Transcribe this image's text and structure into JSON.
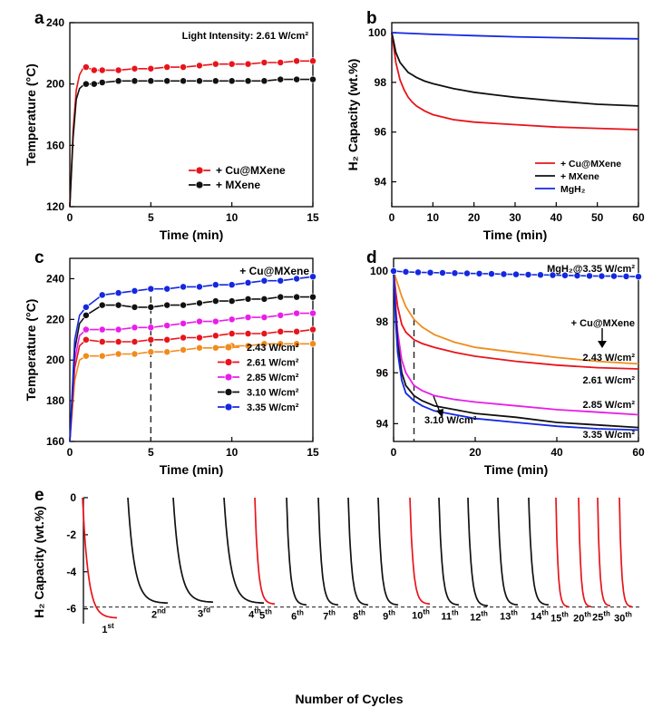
{
  "colors": {
    "red": "#e8141b",
    "black": "#111111",
    "blue": "#1428e0",
    "orange": "#f08c1e",
    "magenta": "#e81ee8"
  },
  "chart_data": [
    {
      "panel": "a",
      "type": "line",
      "xlabel": "Time (min)",
      "ylabel": "Temperature (°C)",
      "xlim": [
        0,
        15
      ],
      "ylim": [
        120,
        240
      ],
      "xticks": [
        0,
        5,
        10,
        15
      ],
      "yticks": [
        120,
        160,
        200,
        240
      ],
      "annotation": "Light Intensity: 2.61 W/cm²",
      "legend_position": "lower-right",
      "markers": true,
      "series": [
        {
          "name": "+ Cu@MXene",
          "color": "#e8141b",
          "x": [
            0,
            0.2,
            0.4,
            0.6,
            0.8,
            1,
            1.5,
            2,
            3,
            4,
            5,
            6,
            7,
            8,
            9,
            10,
            11,
            12,
            13,
            14,
            15
          ],
          "y": [
            120,
            170,
            196,
            206,
            210,
            211,
            209,
            209,
            209,
            210,
            210,
            211,
            211,
            212,
            213,
            213,
            213,
            214,
            214,
            215,
            215
          ]
        },
        {
          "name": "+ MXene",
          "color": "#111111",
          "x": [
            0,
            0.2,
            0.4,
            0.6,
            0.8,
            1,
            1.5,
            2,
            3,
            4,
            5,
            6,
            7,
            8,
            9,
            10,
            11,
            12,
            13,
            14,
            15
          ],
          "y": [
            120,
            165,
            190,
            197,
            199,
            200,
            200,
            201,
            202,
            202,
            202,
            202,
            202,
            202,
            202,
            202,
            202,
            202,
            203,
            203,
            203
          ]
        }
      ]
    },
    {
      "panel": "b",
      "type": "line",
      "xlabel": "Time (min)",
      "ylabel": "H₂ Capacity (wt.%)",
      "xlim": [
        0,
        60
      ],
      "ylim": [
        93,
        100.4
      ],
      "xticks": [
        0,
        10,
        20,
        30,
        40,
        50,
        60
      ],
      "yticks": [
        94,
        96,
        98,
        100
      ],
      "legend_position": "lower-right",
      "series": [
        {
          "name": "+ Cu@MXene",
          "color": "#e8141b",
          "x": [
            0,
            0.5,
            1,
            2,
            3,
            4,
            5,
            6,
            8,
            10,
            15,
            20,
            25,
            30,
            40,
            50,
            60
          ],
          "y": [
            100,
            99.4,
            98.8,
            98.1,
            97.7,
            97.4,
            97.2,
            97.05,
            96.85,
            96.7,
            96.5,
            96.4,
            96.35,
            96.3,
            96.2,
            96.15,
            96.1
          ]
        },
        {
          "name": "+ MXene",
          "color": "#111111",
          "x": [
            0,
            0.5,
            1,
            2,
            3,
            4,
            5,
            6,
            8,
            10,
            15,
            20,
            25,
            30,
            40,
            50,
            60
          ],
          "y": [
            100,
            99.6,
            99.2,
            98.8,
            98.6,
            98.4,
            98.3,
            98.2,
            98.05,
            97.95,
            97.75,
            97.6,
            97.5,
            97.4,
            97.25,
            97.12,
            97.05
          ]
        },
        {
          "name": "MgH₂",
          "color": "#1428e0",
          "x": [
            0,
            10,
            20,
            30,
            40,
            50,
            60
          ],
          "y": [
            100,
            99.93,
            99.88,
            99.83,
            99.8,
            99.77,
            99.75
          ]
        }
      ]
    },
    {
      "panel": "c",
      "type": "line",
      "xlabel": "Time (min)",
      "ylabel": "Temperature (°C)",
      "xlim": [
        0,
        15
      ],
      "ylim": [
        160,
        250
      ],
      "xticks": [
        0,
        5,
        10,
        15
      ],
      "yticks": [
        160,
        180,
        200,
        220,
        240
      ],
      "annotation": "+ Cu@MXene",
      "vline_x": 5,
      "legend_position": "lower-right",
      "markers": true,
      "series": [
        {
          "name": "2.43 W/cm²",
          "color": "#f08c1e",
          "x": [
            0,
            0.3,
            0.6,
            1,
            2,
            3,
            4,
            5,
            6,
            7,
            8,
            9,
            10,
            11,
            12,
            13,
            14,
            15
          ],
          "y": [
            160,
            190,
            200,
            202,
            202,
            203,
            203,
            204,
            204,
            205,
            206,
            206,
            207,
            207,
            208,
            208,
            208,
            208
          ]
        },
        {
          "name": "2.61 W/cm²",
          "color": "#e8141b",
          "x": [
            0,
            0.3,
            0.6,
            1,
            2,
            3,
            4,
            5,
            6,
            7,
            8,
            9,
            10,
            11,
            12,
            13,
            14,
            15
          ],
          "y": [
            160,
            196,
            207,
            210,
            209,
            209,
            209,
            210,
            210,
            211,
            211,
            212,
            213,
            213,
            213,
            214,
            214,
            215
          ]
        },
        {
          "name": "2.85 W/cm²",
          "color": "#e81ee8",
          "x": [
            0,
            0.3,
            0.6,
            1,
            2,
            3,
            4,
            5,
            6,
            7,
            8,
            9,
            10,
            11,
            12,
            13,
            14,
            15
          ],
          "y": [
            160,
            200,
            212,
            215,
            215,
            215,
            216,
            216,
            217,
            218,
            219,
            219,
            220,
            221,
            221,
            222,
            223,
            223
          ]
        },
        {
          "name": "3.10 W/cm²",
          "color": "#111111",
          "x": [
            0,
            0.3,
            0.6,
            1,
            2,
            3,
            4,
            5,
            6,
            7,
            8,
            9,
            10,
            11,
            12,
            13,
            14,
            15
          ],
          "y": [
            160,
            205,
            218,
            222,
            227,
            227,
            226,
            226,
            227,
            227,
            228,
            229,
            229,
            230,
            230,
            231,
            231,
            231
          ]
        },
        {
          "name": "3.35 W/cm²",
          "color": "#1428e0",
          "x": [
            0,
            0.3,
            0.6,
            1,
            2,
            3,
            4,
            5,
            6,
            7,
            8,
            9,
            10,
            11,
            12,
            13,
            14,
            15
          ],
          "y": [
            160,
            210,
            222,
            226,
            232,
            233,
            234,
            235,
            235,
            236,
            236,
            237,
            237,
            238,
            239,
            239,
            240,
            241
          ]
        }
      ]
    },
    {
      "panel": "d",
      "type": "line",
      "xlabel": "Time (min)",
      "ylabel": "",
      "xlim": [
        0,
        60
      ],
      "ylim": [
        93.3,
        100.5
      ],
      "xticks": [
        0,
        20,
        40,
        60
      ],
      "yticks": [
        94,
        96,
        98,
        100
      ],
      "vline_x": 5,
      "annotations": [
        "MgH₂@3.35 W/cm²",
        "+ Cu@MXene"
      ],
      "series": [
        {
          "name": "2.43 W/cm²",
          "color": "#f08c1e",
          "x": [
            0,
            1,
            2,
            3,
            5,
            7,
            10,
            15,
            20,
            30,
            40,
            50,
            60
          ],
          "y": [
            100,
            99.5,
            99.0,
            98.6,
            98.1,
            97.8,
            97.5,
            97.2,
            97.0,
            96.8,
            96.6,
            96.45,
            96.35
          ]
        },
        {
          "name": "2.61 W/cm²",
          "color": "#e8141b",
          "x": [
            0,
            0.5,
            1,
            2,
            3,
            5,
            7,
            10,
            15,
            20,
            30,
            40,
            50,
            60
          ],
          "y": [
            100,
            99.2,
            98.6,
            97.9,
            97.6,
            97.3,
            97.15,
            97.0,
            96.8,
            96.65,
            96.45,
            96.3,
            96.2,
            96.15
          ]
        },
        {
          "name": "2.85 W/cm²",
          "color": "#e81ee8",
          "x": [
            0,
            0.5,
            1,
            2,
            3,
            5,
            7,
            10,
            15,
            20,
            30,
            40,
            50,
            60
          ],
          "y": [
            100,
            98.6,
            97.6,
            96.5,
            96.0,
            95.5,
            95.3,
            95.1,
            94.95,
            94.85,
            94.7,
            94.55,
            94.45,
            94.35
          ]
        },
        {
          "name": "3.10 W/cm²",
          "color": "#111111",
          "x": [
            0,
            0.5,
            1,
            2,
            3,
            5,
            7,
            10,
            15,
            20,
            30,
            40,
            50,
            60
          ],
          "y": [
            100,
            98.3,
            97.2,
            96.0,
            95.5,
            95.1,
            94.9,
            94.7,
            94.55,
            94.4,
            94.25,
            94.05,
            93.95,
            93.85
          ]
        },
        {
          "name": "3.35 W/cm²",
          "color": "#1428e0",
          "x": [
            0,
            0.5,
            1,
            2,
            3,
            5,
            7,
            10,
            15,
            20,
            30,
            40,
            50,
            60
          ],
          "y": [
            100,
            98.0,
            96.8,
            95.7,
            95.2,
            94.9,
            94.7,
            94.5,
            94.35,
            94.2,
            94.05,
            93.9,
            93.8,
            93.75
          ]
        },
        {
          "name": "MgH₂@3.35 W/cm²",
          "color": "#1428e0",
          "markers": true,
          "x": [
            0,
            3,
            6,
            9,
            12,
            15,
            18,
            21,
            24,
            27,
            30,
            33,
            36,
            39,
            42,
            45,
            48,
            51,
            54,
            57,
            60
          ],
          "y": [
            100,
            99.97,
            99.95,
            99.94,
            99.93,
            99.92,
            99.91,
            99.9,
            99.89,
            99.88,
            99.87,
            99.86,
            99.85,
            99.84,
            99.83,
            99.82,
            99.81,
            99.8,
            99.8,
            99.79,
            99.78
          ]
        }
      ],
      "curve_labels": [
        "2.43 W/cm²",
        "2.61 W/cm²",
        "2.85 W/cm²",
        "3.10 W/cm²",
        "3.35 W/cm²"
      ]
    },
    {
      "panel": "e",
      "type": "line",
      "xlabel": "Number of Cycles",
      "ylabel": "H₂ Capacity (wt.%)",
      "ylim": [
        -6.8,
        0
      ],
      "yticks": [
        0,
        -2,
        -4,
        -6
      ],
      "hline_y": -5.9,
      "cycles": [
        {
          "label": "1",
          "sup": "st",
          "color": "#e8141b",
          "final": -6.5
        },
        {
          "label": "2",
          "sup": "nd",
          "color": "#111111",
          "final": -5.7
        },
        {
          "label": "3",
          "sup": "rd",
          "color": "#111111",
          "final": -5.65
        },
        {
          "label": "4",
          "sup": "th",
          "color": "#111111",
          "final": -5.7
        },
        {
          "label": "5",
          "sup": "th",
          "color": "#e8141b",
          "final": -5.75
        },
        {
          "label": "6",
          "sup": "th",
          "color": "#111111",
          "final": -5.8
        },
        {
          "label": "7",
          "sup": "th",
          "color": "#111111",
          "final": -5.8
        },
        {
          "label": "8",
          "sup": "th",
          "color": "#111111",
          "final": -5.8
        },
        {
          "label": "9",
          "sup": "th",
          "color": "#111111",
          "final": -5.8
        },
        {
          "label": "10",
          "sup": "th",
          "color": "#e8141b",
          "final": -5.75
        },
        {
          "label": "11",
          "sup": "th",
          "color": "#111111",
          "final": -5.8
        },
        {
          "label": "12",
          "sup": "th",
          "color": "#111111",
          "final": -5.85
        },
        {
          "label": "13",
          "sup": "th",
          "color": "#111111",
          "final": -5.8
        },
        {
          "label": "14",
          "sup": "th",
          "color": "#111111",
          "final": -5.8
        },
        {
          "label": "15",
          "sup": "th",
          "color": "#e8141b",
          "final": -5.9
        },
        {
          "label": "20",
          "sup": "th",
          "color": "#e8141b",
          "final": -5.9
        },
        {
          "label": "25",
          "sup": "th",
          "color": "#e8141b",
          "final": -5.85
        },
        {
          "label": "30",
          "sup": "th",
          "color": "#e8141b",
          "final": -5.9
        }
      ]
    }
  ]
}
